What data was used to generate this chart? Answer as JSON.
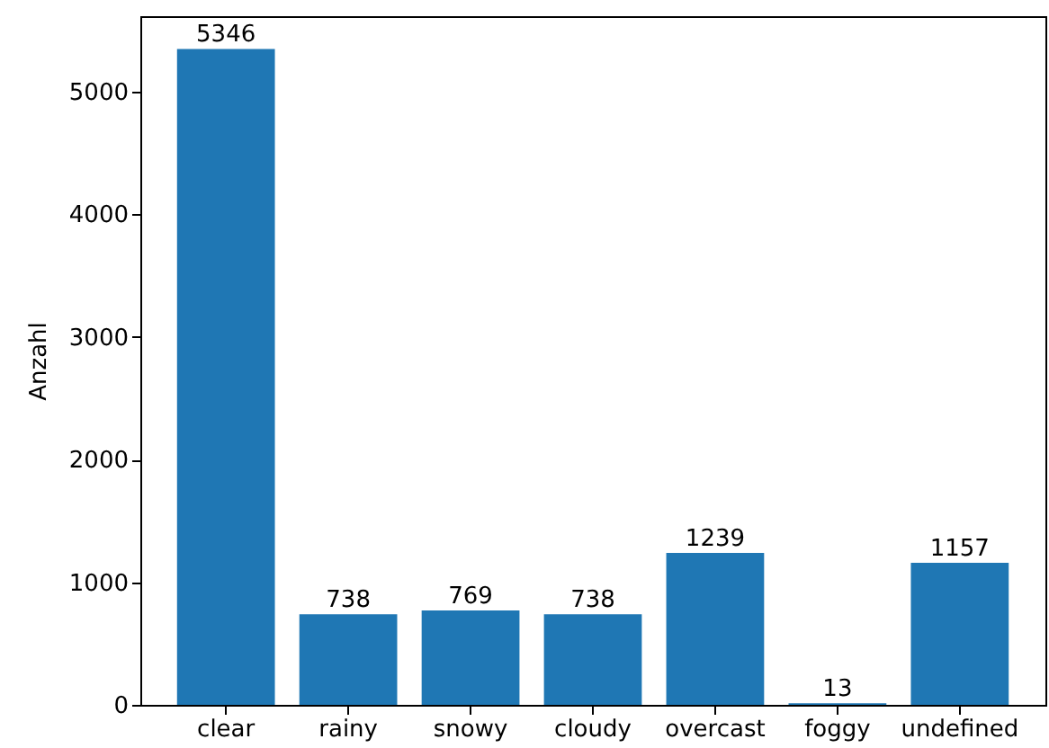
{
  "chart_data": {
    "type": "bar",
    "ylabel": "Anzahl",
    "categories": [
      "clear",
      "rainy",
      "snowy",
      "cloudy",
      "overcast",
      "foggy",
      "undefined"
    ],
    "values": [
      5346,
      738,
      769,
      738,
      1239,
      13,
      1157
    ],
    "color": "#1f77b4",
    "ylim": [
      0,
      5613
    ],
    "yticks": [
      0,
      1000,
      2000,
      3000,
      4000,
      5000
    ],
    "data_labels": true
  }
}
